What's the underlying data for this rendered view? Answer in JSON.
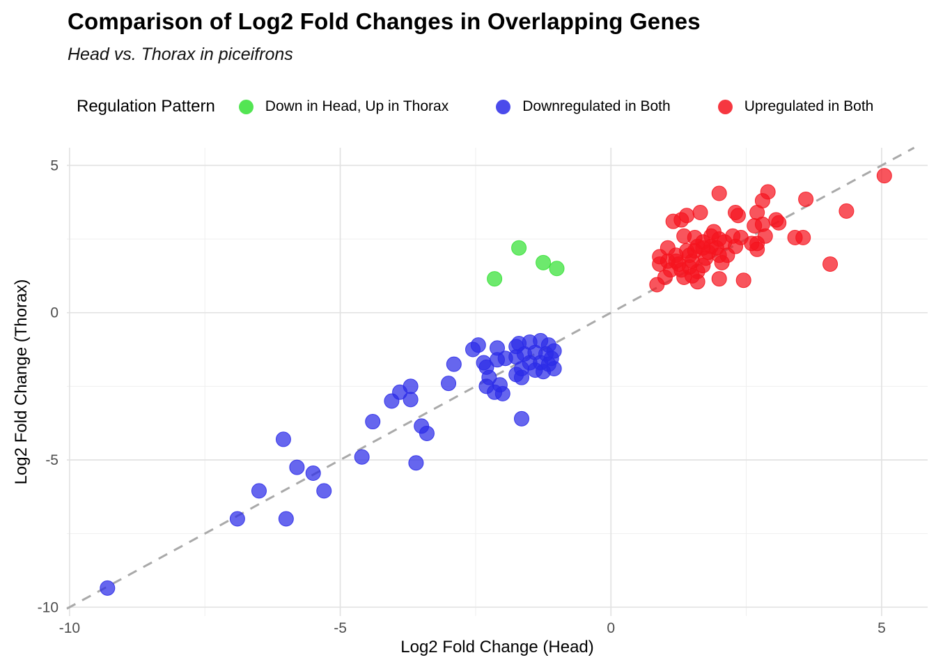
{
  "title": "Comparison of Log2 Fold Changes in Overlapping Genes",
  "subtitle": "Head vs. Thorax in piceifrons",
  "legend": {
    "title": "Regulation Pattern",
    "items": [
      {
        "label": "Down in Head, Up in Thorax",
        "color": "#35E135"
      },
      {
        "label": "Downregulated in Both",
        "color": "#2B2BE8"
      },
      {
        "label": "Upregulated in Both",
        "color": "#F5141E"
      }
    ]
  },
  "chart_data": {
    "type": "scatter",
    "title": "Comparison of Log2 Fold Changes in Overlapping Genes",
    "subtitle": "Head vs. Thorax in piceifrons",
    "xlabel": "Log2 Fold Change (Head)",
    "ylabel": "Log2 Fold Change (Thorax)",
    "xlim": [
      -10.05,
      5.85
    ],
    "ylim": [
      -10.3,
      5.6
    ],
    "x_major_ticks": [
      -10,
      -5,
      0,
      5
    ],
    "x_minor_ticks": [
      -7.5,
      -2.5,
      2.5
    ],
    "y_major_ticks": [
      5,
      0,
      -5,
      -10
    ],
    "y_minor_ticks": [
      2.5,
      -2.5,
      -7.5
    ],
    "grid": true,
    "legend_position": "top",
    "point_opacity": 0.72,
    "reference_line": {
      "equation": "y = x",
      "style": "dashed",
      "color": "#A9A9A9"
    },
    "colors": {
      "major_grid": "#E2E2E2",
      "minor_grid": "#EFEFEF",
      "tick_text": "#4d4d4d"
    },
    "series": [
      {
        "name": "Down in Head, Up in Thorax",
        "color": "#35E135",
        "points": [
          [
            -2.15,
            1.15
          ],
          [
            -1.7,
            2.2
          ],
          [
            -1.25,
            1.7
          ],
          [
            -1.0,
            1.5
          ]
        ]
      },
      {
        "name": "Downregulated in Both",
        "color": "#2B2BE8",
        "points": [
          [
            -9.3,
            -9.35
          ],
          [
            -6.9,
            -7.0
          ],
          [
            -6.0,
            -7.0
          ],
          [
            -6.5,
            -6.05
          ],
          [
            -6.05,
            -4.3
          ],
          [
            -5.8,
            -5.25
          ],
          [
            -5.5,
            -5.45
          ],
          [
            -5.3,
            -6.05
          ],
          [
            -4.6,
            -4.9
          ],
          [
            -4.4,
            -3.7
          ],
          [
            -4.05,
            -3.0
          ],
          [
            -3.9,
            -2.7
          ],
          [
            -3.7,
            -2.5
          ],
          [
            -3.7,
            -2.95
          ],
          [
            -3.6,
            -5.1
          ],
          [
            -3.5,
            -3.85
          ],
          [
            -3.4,
            -4.1
          ],
          [
            -3.0,
            -2.4
          ],
          [
            -2.9,
            -1.75
          ],
          [
            -2.55,
            -1.25
          ],
          [
            -2.45,
            -1.1
          ],
          [
            -2.35,
            -1.7
          ],
          [
            -2.3,
            -1.85
          ],
          [
            -2.25,
            -2.2
          ],
          [
            -2.3,
            -2.5
          ],
          [
            -2.15,
            -2.7
          ],
          [
            -2.1,
            -1.2
          ],
          [
            -2.1,
            -1.6
          ],
          [
            -2.05,
            -2.45
          ],
          [
            -2.0,
            -2.75
          ],
          [
            -1.95,
            -1.55
          ],
          [
            -1.75,
            -2.1
          ],
          [
            -1.65,
            -2.2
          ],
          [
            -1.65,
            -3.6
          ],
          [
            -1.75,
            -1.15
          ],
          [
            -1.7,
            -1.05
          ],
          [
            -1.5,
            -1.0
          ],
          [
            -1.3,
            -0.95
          ],
          [
            -1.15,
            -1.1
          ],
          [
            -1.05,
            -1.3
          ],
          [
            -1.2,
            -1.4
          ],
          [
            -1.4,
            -1.35
          ],
          [
            -1.6,
            -1.4
          ],
          [
            -1.75,
            -1.5
          ],
          [
            -1.5,
            -1.7
          ],
          [
            -1.3,
            -1.7
          ],
          [
            -1.15,
            -1.75
          ],
          [
            -1.05,
            -1.9
          ],
          [
            -1.65,
            -1.9
          ],
          [
            -1.4,
            -1.95
          ],
          [
            -1.25,
            -2.0
          ],
          [
            -1.1,
            -1.55
          ]
        ]
      },
      {
        "name": "Upregulated in Both",
        "color": "#F5141E",
        "points": [
          [
            5.05,
            4.65
          ],
          [
            2.0,
            4.05
          ],
          [
            2.9,
            4.1
          ],
          [
            2.8,
            3.8
          ],
          [
            3.6,
            3.85
          ],
          [
            4.35,
            3.45
          ],
          [
            4.05,
            1.65
          ],
          [
            2.45,
            1.1
          ],
          [
            3.4,
            2.55
          ],
          [
            3.55,
            2.55
          ],
          [
            3.1,
            3.05
          ],
          [
            3.05,
            3.15
          ],
          [
            2.85,
            2.6
          ],
          [
            2.7,
            2.35
          ],
          [
            1.15,
            3.1
          ],
          [
            1.3,
            3.15
          ],
          [
            1.4,
            3.3
          ],
          [
            1.65,
            3.4
          ],
          [
            2.3,
            3.4
          ],
          [
            2.35,
            3.3
          ],
          [
            2.7,
            3.4
          ],
          [
            2.8,
            3.0
          ],
          [
            2.65,
            2.95
          ],
          [
            1.9,
            2.75
          ],
          [
            1.85,
            2.6
          ],
          [
            2.0,
            2.5
          ],
          [
            2.25,
            2.6
          ],
          [
            2.4,
            2.55
          ],
          [
            2.6,
            2.35
          ],
          [
            2.7,
            2.15
          ],
          [
            2.3,
            2.25
          ],
          [
            1.7,
            2.4
          ],
          [
            1.6,
            2.25
          ],
          [
            1.8,
            2.05
          ],
          [
            2.0,
            1.95
          ],
          [
            2.05,
            1.7
          ],
          [
            1.35,
            2.6
          ],
          [
            1.55,
            2.55
          ],
          [
            1.05,
            2.2
          ],
          [
            0.9,
            1.9
          ],
          [
            0.9,
            1.65
          ],
          [
            1.0,
            1.2
          ],
          [
            1.2,
            1.95
          ],
          [
            1.25,
            1.65
          ],
          [
            1.4,
            2.1
          ],
          [
            1.5,
            1.75
          ],
          [
            1.6,
            1.4
          ],
          [
            1.35,
            1.2
          ],
          [
            1.6,
            1.05
          ],
          [
            1.1,
            1.45
          ],
          [
            1.3,
            1.45
          ],
          [
            1.45,
            1.55
          ],
          [
            1.2,
            1.75
          ],
          [
            1.05,
            1.75
          ],
          [
            1.5,
            1.25
          ],
          [
            1.7,
            1.6
          ],
          [
            1.75,
            1.85
          ],
          [
            1.85,
            2.25
          ],
          [
            1.95,
            2.2
          ],
          [
            2.1,
            2.4
          ],
          [
            0.85,
            0.95
          ],
          [
            1.45,
            1.95
          ],
          [
            1.55,
            2.1
          ],
          [
            1.7,
            2.2
          ],
          [
            2.15,
            1.95
          ],
          [
            2.0,
            1.15
          ]
        ]
      }
    ]
  }
}
